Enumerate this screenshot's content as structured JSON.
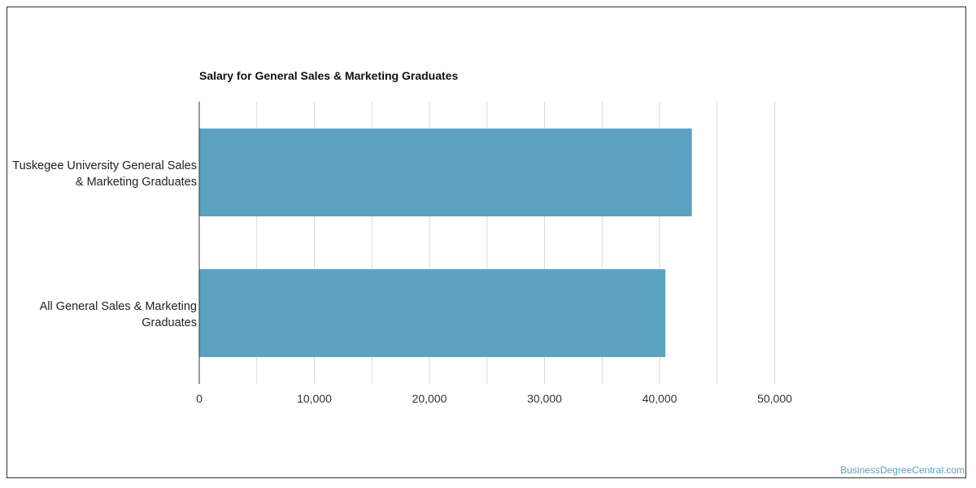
{
  "chart_data": {
    "type": "bar",
    "orientation": "horizontal",
    "title": "Salary for General Sales & Marketing Graduates",
    "categories": [
      "Tuskegee University General Sales & Marketing Graduates",
      "All General Sales & Marketing Graduates"
    ],
    "category_lines": [
      [
        "Tuskegee University General Sales",
        "& Marketing Graduates"
      ],
      [
        "All General Sales & Marketing",
        "Graduates"
      ]
    ],
    "values": [
      42800,
      40500
    ],
    "xlabel": "",
    "ylabel": "",
    "xlim": [
      0,
      50000
    ],
    "x_ticks": [
      0,
      10000,
      20000,
      30000,
      40000,
      50000
    ],
    "x_tick_labels": [
      "0",
      "10,000",
      "20,000",
      "30,000",
      "40,000",
      "50,000"
    ],
    "grid": true,
    "bar_color": "#5ba2c0",
    "grid_color": "#d9d9d9"
  },
  "watermark": "BusinessDegreeCentral.com"
}
